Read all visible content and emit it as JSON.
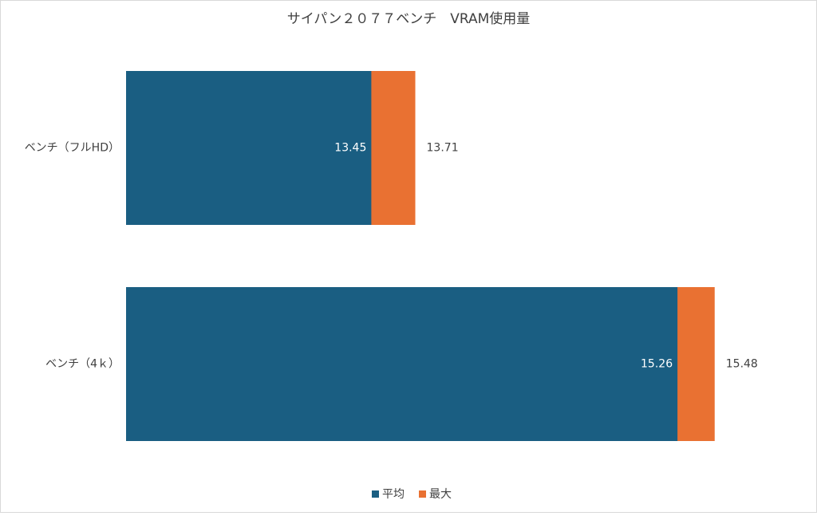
{
  "chart_data": {
    "type": "bar",
    "orientation": "horizontal",
    "overlap": true,
    "title": "サイパン２０７７ベンチ　VRAM使用量",
    "categories": [
      "ベンチ（フルHD）",
      "ベンチ（4ｋ）"
    ],
    "series": [
      {
        "name": "平均",
        "color": "#1a5e82",
        "values": [
          13.45,
          15.26
        ],
        "label_position": "inside_end",
        "label_color": "#ffffff"
      },
      {
        "name": "最大",
        "color": "#e97132",
        "values": [
          13.71,
          15.48
        ],
        "label_position": "outside_end",
        "label_color": "#404040"
      }
    ],
    "xlim": [
      12,
      16
    ],
    "grid": false,
    "legend": "bottom"
  }
}
